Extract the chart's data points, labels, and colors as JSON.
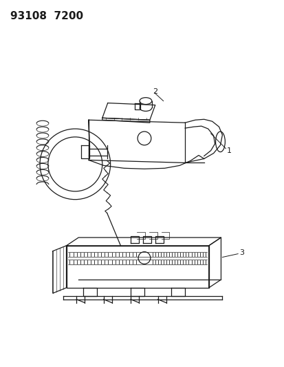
{
  "title": "93108  7200",
  "background_color": "#ffffff",
  "line_color": "#1a1a1a",
  "label_1": "1",
  "label_2": "2",
  "label_3": "3",
  "fig_width": 4.14,
  "fig_height": 5.33,
  "dpi": 100
}
